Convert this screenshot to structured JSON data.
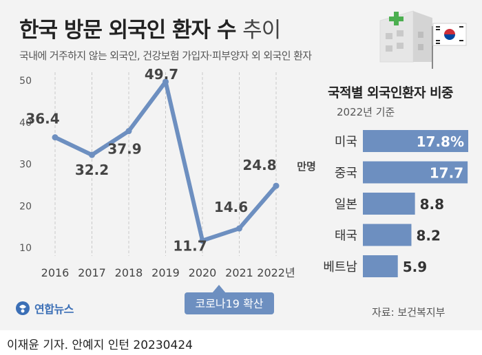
{
  "header": {
    "title_main": "한국 방문 외국인 환자 수",
    "title_suffix": "추이",
    "subtitle": "국내에 거주하지 않는 외국인, 건강보험 가입자·피부양자 외 외국인 환자"
  },
  "chart_data": [
    {
      "type": "line",
      "x": [
        "2016",
        "2017",
        "2018",
        "2019",
        "2020",
        "2021",
        "2022"
      ],
      "x_tick_labels": [
        "2016",
        "2017",
        "2018",
        "2019",
        "2020",
        "2021",
        "2022년"
      ],
      "values": [
        36.4,
        32.2,
        37.9,
        49.7,
        11.7,
        14.6,
        24.8
      ],
      "data_labels": [
        "36.4",
        "32.2",
        "37.9",
        "49.7",
        "11.7",
        "14.6",
        "24.8"
      ],
      "unit_label": "만명",
      "yticks": [
        10,
        20,
        30,
        40,
        50
      ],
      "ylim": [
        10,
        50
      ],
      "grid": "vertical",
      "annotation": "코로나19 확산",
      "line_color": "#6d8fc0"
    },
    {
      "type": "bar",
      "orientation": "horizontal",
      "title": "국적별 외국인환자 비중",
      "subtitle": "2022년 기준",
      "categories": [
        "미국",
        "중국",
        "일본",
        "태국",
        "베트남"
      ],
      "values": [
        17.8,
        17.7,
        8.8,
        8.2,
        5.9
      ],
      "data_labels": [
        "17.8%",
        "17.7",
        "8.8",
        "8.2",
        "5.9"
      ],
      "bar_color": "#6d8fc0"
    }
  ],
  "logo_text": "연합뉴스",
  "source": "자료: 보건복지부",
  "credit": "이재윤 기자. 안예지 인턴  20230424"
}
